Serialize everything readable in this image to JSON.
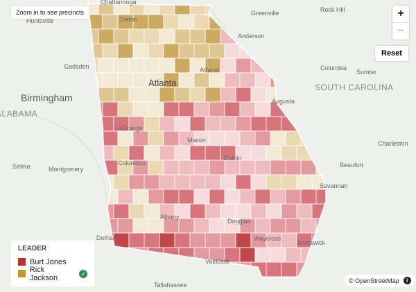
{
  "map": {
    "labels": [
      "Chattanooga",
      "Dalton",
      "Greenville",
      "Rock Hill",
      "Huntsville",
      "Anderson",
      "Athens",
      "Gadsden",
      "Atlanta",
      "Columbia",
      "Sumter",
      "Birmingham",
      "SOUTH CAROLINA",
      "ALABAMA",
      "Augusta",
      "LaGrange",
      "Macon",
      "Charleston",
      "Dublin",
      "Selma",
      "Montgomery",
      "Columbus",
      "Beaufort",
      "Savannah",
      "Albany",
      "Douglas",
      "Dothan",
      "Waycross",
      "Brunswick",
      "Valdosta",
      "Tallahassee"
    ]
  },
  "controls": {
    "note": "Zoom in to see precincts",
    "zoom_in": "+",
    "zoom_out": "−",
    "reset": "Reset"
  },
  "legend": {
    "title": "LEADER",
    "items": [
      "Burt Jones",
      "Rick Jackson"
    ]
  },
  "attribution": "© OpenStreetMap"
}
